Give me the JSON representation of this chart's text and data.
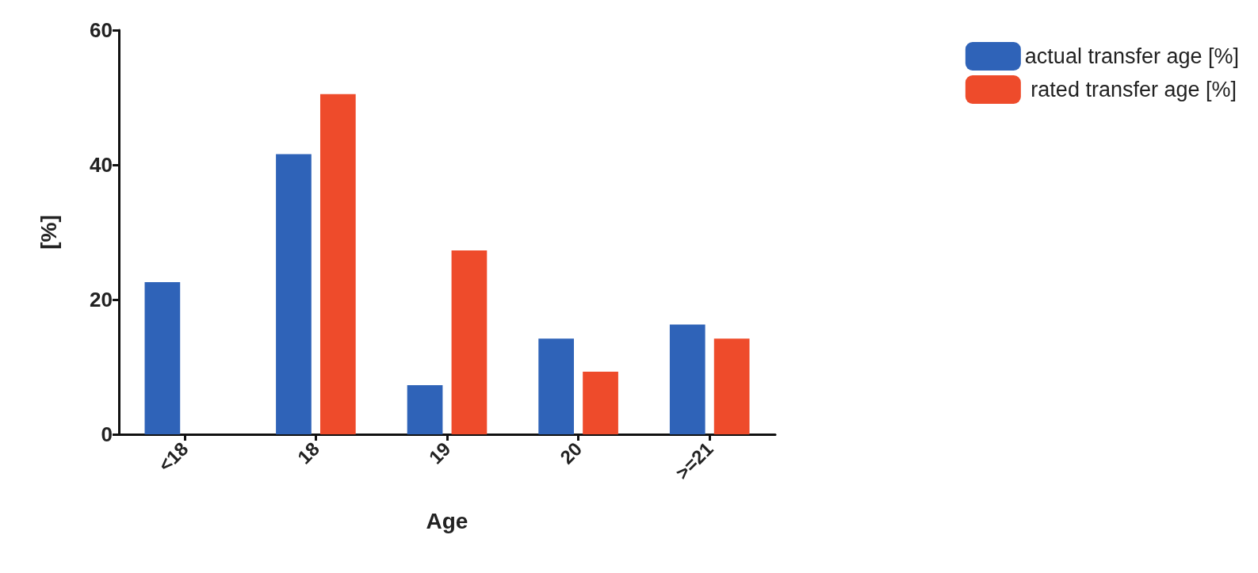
{
  "chart_data": {
    "type": "bar",
    "xlabel": "Age",
    "ylabel": "[%]",
    "categories": [
      "<18",
      "18",
      "19",
      "20",
      ">=21"
    ],
    "series": [
      {
        "name": "actual transfer age [%]",
        "color": "#2f63b8",
        "values": [
          22.6,
          41.6,
          7.3,
          14.2,
          16.3
        ]
      },
      {
        "name": " rated transfer age [%]",
        "color": "#ee4b2b",
        "values": [
          0,
          50.5,
          27.3,
          9.3,
          14.2
        ]
      }
    ],
    "ylim": [
      0,
      60
    ],
    "yticks": [
      0,
      20,
      40,
      60
    ],
    "grid": false,
    "legend": "top right"
  }
}
